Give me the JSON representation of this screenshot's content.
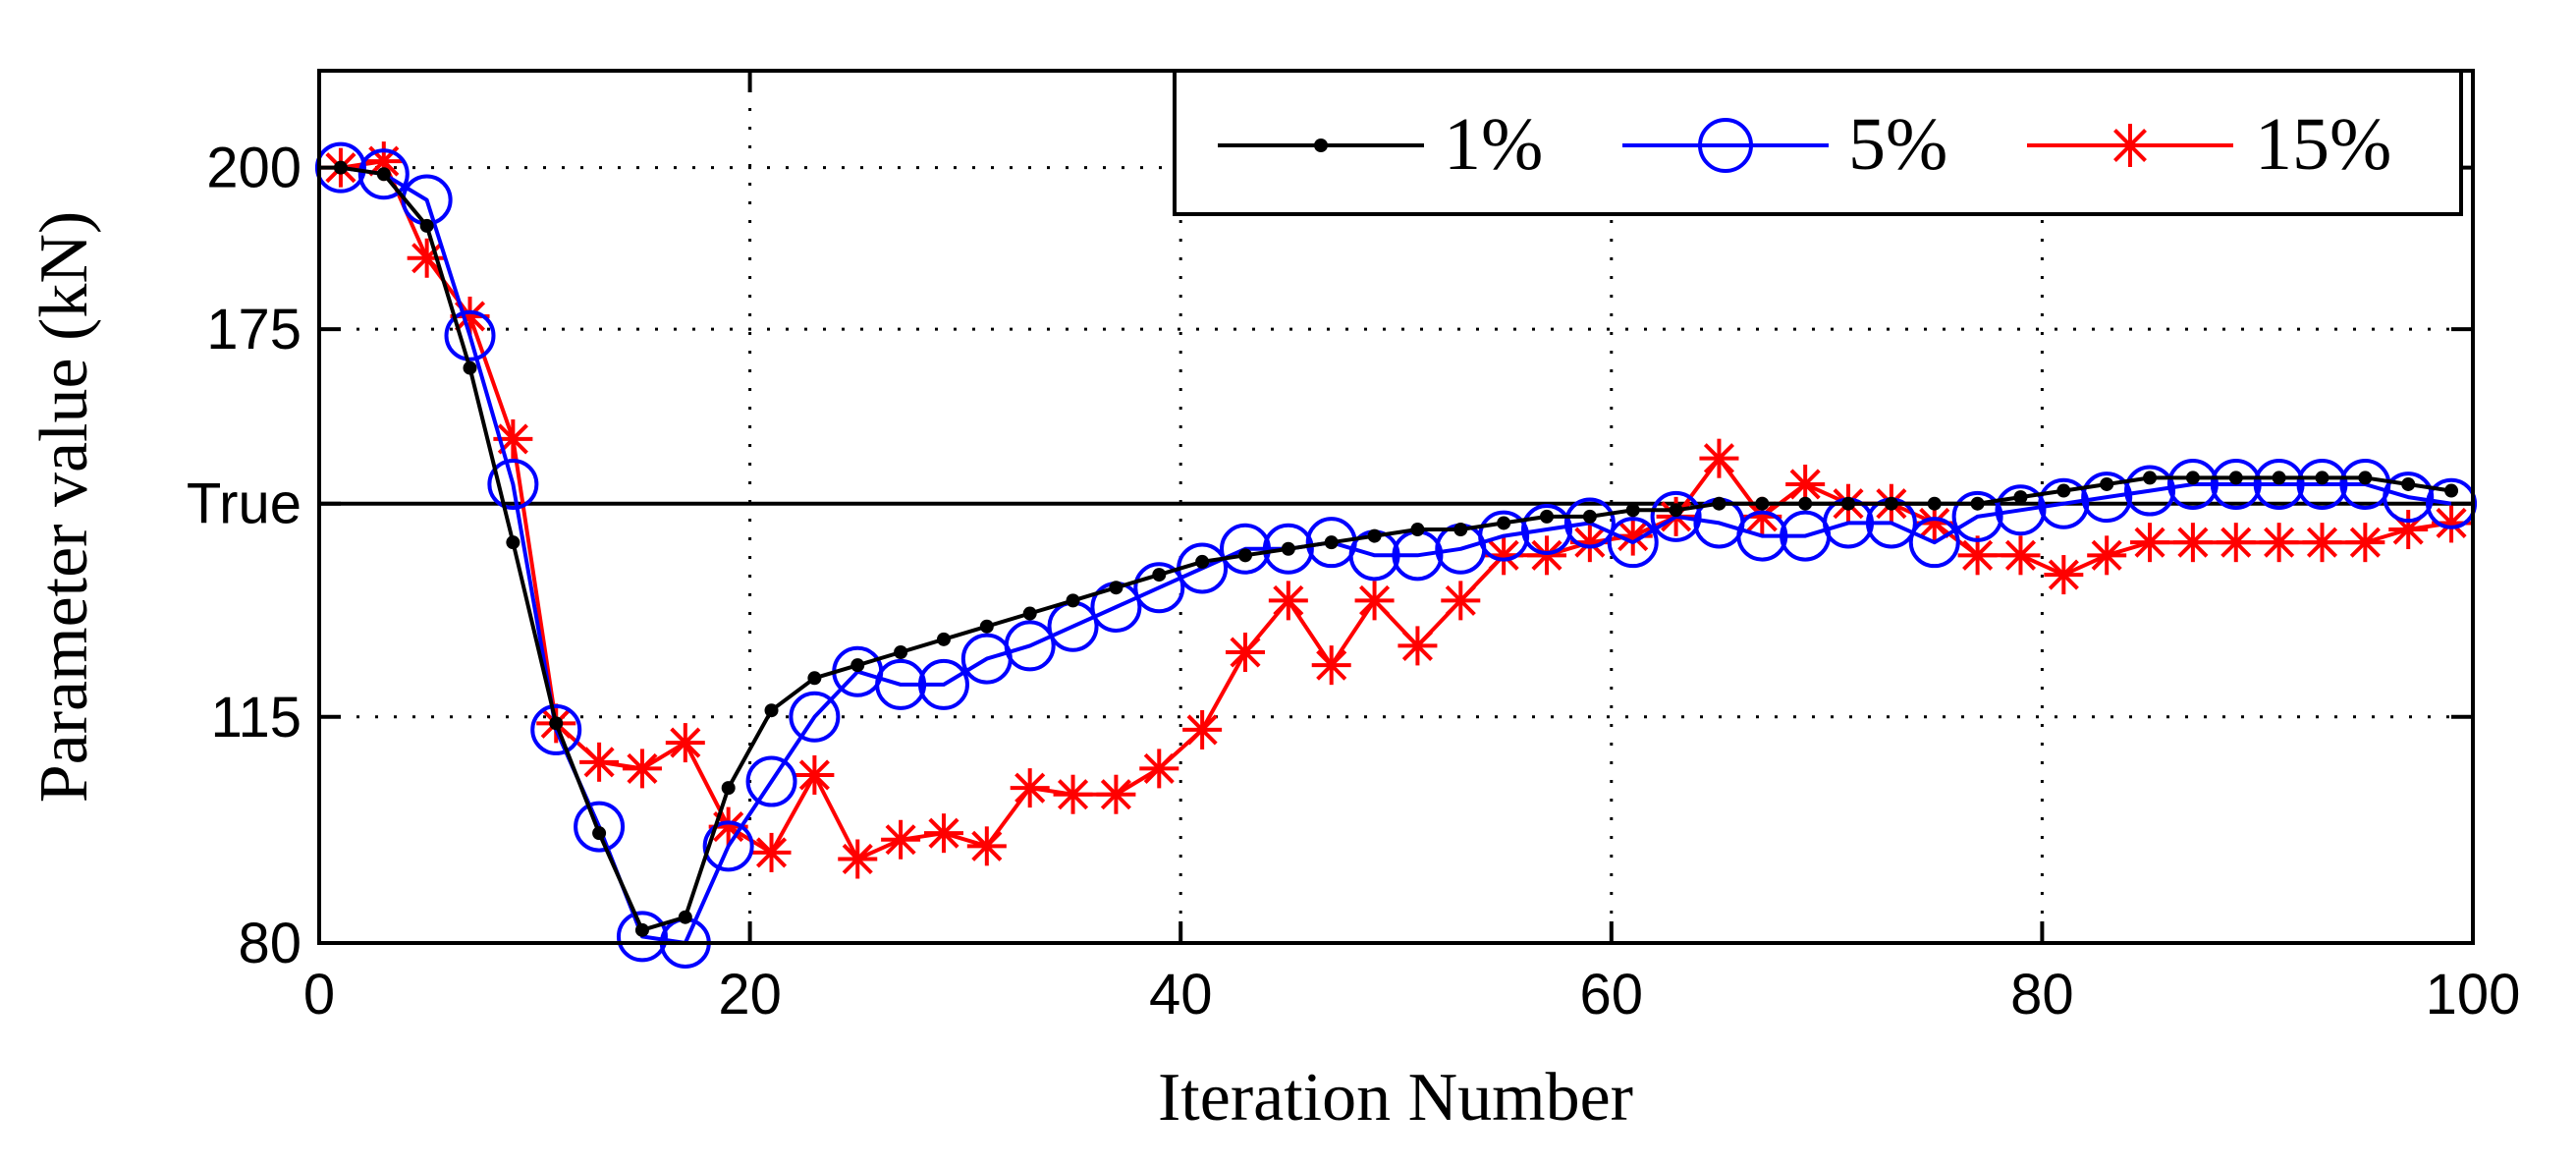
{
  "chart_data": {
    "type": "line",
    "title": "",
    "xlabel": "Iteration Number",
    "ylabel": "Parameter value (kN)",
    "xlim": [
      0,
      100
    ],
    "ylim": [
      80,
      215
    ],
    "xticks": [
      0,
      20,
      40,
      60,
      80,
      100
    ],
    "yticks": [
      {
        "value": 80,
        "label": "80"
      },
      {
        "value": 115,
        "label": "115"
      },
      {
        "value": 148,
        "label": "True"
      },
      {
        "value": 175,
        "label": "175"
      },
      {
        "value": 200,
        "label": "200"
      }
    ],
    "true_value": 148,
    "grid": true,
    "legend_position": "top-right",
    "series": [
      {
        "name": "1%",
        "color": "#000000",
        "marker": "dot",
        "x": [
          1,
          3,
          5,
          7,
          9,
          11,
          13,
          15,
          17,
          19,
          21,
          23,
          25,
          27,
          29,
          31,
          33,
          35,
          37,
          39,
          41,
          43,
          45,
          47,
          49,
          51,
          53,
          55,
          57,
          59,
          61,
          63,
          65,
          67,
          69,
          71,
          73,
          75,
          77,
          79,
          81,
          83,
          85,
          87,
          89,
          91,
          93,
          95,
          97,
          99
        ],
        "y": [
          200,
          199,
          191,
          169,
          142,
          114,
          97,
          82,
          84,
          104,
          116,
          121,
          123,
          125,
          127,
          129,
          131,
          133,
          135,
          137,
          139,
          140,
          141,
          142,
          143,
          144,
          144,
          145,
          146,
          146,
          147,
          147,
          148,
          148,
          148,
          148,
          148,
          148,
          148,
          149,
          150,
          151,
          152,
          152,
          152,
          152,
          152,
          152,
          151,
          150
        ]
      },
      {
        "name": "5%",
        "color": "#0000ff",
        "marker": "circle",
        "x": [
          1,
          3,
          5,
          7,
          9,
          11,
          13,
          15,
          17,
          19,
          21,
          23,
          25,
          27,
          29,
          31,
          33,
          35,
          37,
          39,
          41,
          43,
          45,
          47,
          49,
          51,
          53,
          55,
          57,
          59,
          61,
          63,
          65,
          67,
          69,
          71,
          73,
          75,
          77,
          79,
          81,
          83,
          85,
          87,
          89,
          91,
          93,
          95,
          97,
          99
        ],
        "y": [
          200,
          199,
          195,
          174,
          151,
          113,
          98,
          81,
          80,
          95,
          105,
          115,
          122,
          120,
          120,
          124,
          126,
          129,
          132,
          135,
          138,
          141,
          141,
          142,
          140,
          140,
          141,
          143,
          144,
          145,
          142,
          146,
          145,
          143,
          143,
          145,
          145,
          142,
          146,
          147,
          148,
          149,
          150,
          151,
          151,
          151,
          151,
          151,
          149,
          148
        ]
      },
      {
        "name": "15%",
        "color": "#ff0000",
        "marker": "star",
        "x": [
          1,
          3,
          5,
          7,
          9,
          11,
          13,
          15,
          17,
          19,
          21,
          23,
          25,
          27,
          29,
          31,
          33,
          35,
          37,
          39,
          41,
          43,
          45,
          47,
          49,
          51,
          53,
          55,
          57,
          59,
          61,
          63,
          65,
          67,
          69,
          71,
          73,
          75,
          77,
          79,
          81,
          83,
          85,
          87,
          89,
          91,
          93,
          95,
          97,
          99
        ],
        "y": [
          200,
          201,
          186,
          177,
          158,
          114,
          108,
          107,
          111,
          98,
          94,
          106,
          93,
          96,
          97,
          95,
          104,
          103,
          103,
          107,
          113,
          125,
          133,
          123,
          133,
          126,
          133,
          140,
          140,
          142,
          143,
          146,
          155,
          146,
          151,
          148,
          148,
          145,
          140,
          140,
          137,
          140,
          142,
          142,
          142,
          142,
          142,
          142,
          144,
          145
        ]
      }
    ]
  }
}
